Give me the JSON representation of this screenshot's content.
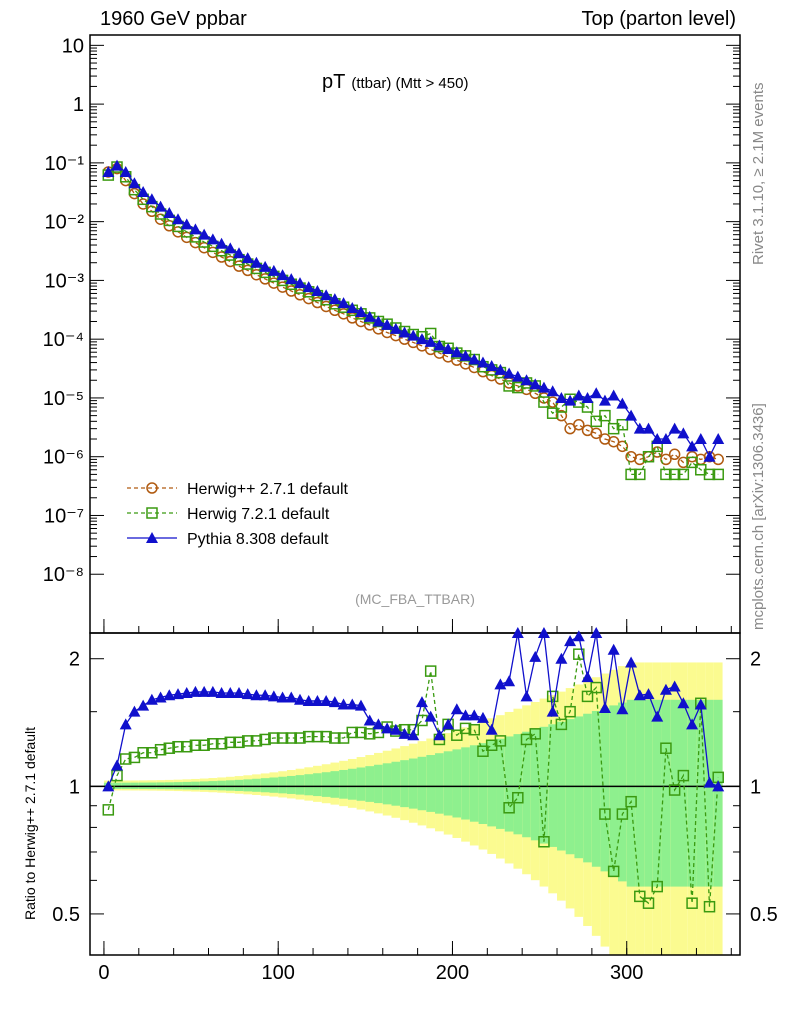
{
  "header": {
    "left": "1960 GeV ppbar",
    "right": "Top (parton level)"
  },
  "side_labels": {
    "rivet": "Rivet 3.1.10, ≥ 2.1M events",
    "mcplots": "mcplots.cern.ch [arXiv:1306.3436]"
  },
  "chart_data": {
    "type": "line",
    "title": "pT",
    "title_sub": "(ttbar) (Mtt > 450)",
    "watermark": "(MC_FBA_TTBAR)",
    "ratio_ylabel": "Ratio to Herwig++ 2.7.1 default",
    "xlim": [
      -8,
      365
    ],
    "ylim": [
      1e-09,
      15
    ],
    "yscale": "log",
    "ratio_ylim": [
      0.4,
      2.3
    ],
    "ratio_yscale": "log",
    "x_ticks": [
      "0",
      "100",
      "200",
      "300"
    ],
    "y_ticks": [
      "10⁻⁸",
      "10⁻⁷",
      "10⁻⁶",
      "10⁻⁵",
      "10⁻⁴",
      "10⁻³",
      "10⁻²",
      "10⁻¹",
      "1",
      "10"
    ],
    "ratio_ticks": [
      "0.5",
      "1",
      "2"
    ],
    "legend_position": "lower-left",
    "series": [
      {
        "name": "Herwig++ 2.7.1 default",
        "color": "#b05a10",
        "marker": "circle-open",
        "dash": true,
        "x": [
          2.5,
          7.5,
          12.5,
          17.5,
          22.5,
          27.5,
          32.5,
          37.5,
          42.5,
          47.5,
          52.5,
          57.5,
          62.5,
          67.5,
          72.5,
          77.5,
          82.5,
          87.5,
          92.5,
          97.5,
          102.5,
          107.5,
          112.5,
          117.5,
          122.5,
          127.5,
          132.5,
          137.5,
          142.5,
          147.5,
          152.5,
          157.5,
          162.5,
          167.5,
          172.5,
          177.5,
          182.5,
          187.5,
          192.5,
          197.5,
          202.5,
          207.5,
          212.5,
          217.5,
          222.5,
          227.5,
          232.5,
          237.5,
          242.5,
          247.5,
          252.5,
          257.5,
          262.5,
          267.5,
          272.5,
          277.5,
          282.5,
          287.5,
          292.5,
          297.5,
          302.5,
          307.5,
          312.5,
          317.5,
          322.5,
          327.5,
          332.5,
          337.5,
          342.5,
          347.5,
          352.5
        ],
        "values": [
          0.07,
          0.08,
          0.05,
          0.03,
          0.02,
          0.015,
          0.011,
          0.0085,
          0.0067,
          0.0054,
          0.0044,
          0.0036,
          0.003,
          0.0025,
          0.0021,
          0.00175,
          0.00148,
          0.00125,
          0.00106,
          0.0009,
          0.00077,
          0.00066,
          0.00057,
          0.00049,
          0.00042,
          0.00036,
          0.00031,
          0.00027,
          0.00023,
          0.0002,
          0.000175,
          0.00015,
          0.00013,
          0.000115,
          0.0001,
          8.8e-05,
          7.7e-05,
          6.7e-05,
          5.8e-05,
          5e-05,
          4.4e-05,
          3.8e-05,
          3.3e-05,
          2.8e-05,
          2.4e-05,
          2.1e-05,
          1.8e-05,
          1.6e-05,
          1.4e-05,
          1.2e-05,
          1e-05,
          8.5e-06,
          5e-06,
          3e-06,
          3.5e-06,
          2.8e-06,
          2.5e-06,
          2e-06,
          1.8e-06,
          1.5e-06,
          1e-06,
          9e-07,
          1e-06,
          1.2e-06,
          9e-07,
          1.1e-06,
          8e-07,
          1e-06,
          9e-07,
          1e-06,
          9e-07
        ]
      },
      {
        "name": "Herwig 7.2.1 default",
        "color": "#3a9a10",
        "marker": "square-open",
        "dash": true,
        "x": [
          2.5,
          7.5,
          12.5,
          17.5,
          22.5,
          27.5,
          32.5,
          37.5,
          42.5,
          47.5,
          52.5,
          57.5,
          62.5,
          67.5,
          72.5,
          77.5,
          82.5,
          87.5,
          92.5,
          97.5,
          102.5,
          107.5,
          112.5,
          117.5,
          122.5,
          127.5,
          132.5,
          137.5,
          142.5,
          147.5,
          152.5,
          157.5,
          162.5,
          167.5,
          172.5,
          177.5,
          182.5,
          187.5,
          192.5,
          197.5,
          202.5,
          207.5,
          212.5,
          217.5,
          222.5,
          227.5,
          232.5,
          237.5,
          242.5,
          247.5,
          252.5,
          257.5,
          262.5,
          267.5,
          272.5,
          277.5,
          282.5,
          287.5,
          292.5,
          297.5,
          302.5,
          307.5,
          312.5,
          317.5,
          322.5,
          327.5,
          332.5,
          337.5,
          342.5,
          347.5,
          352.5
        ],
        "values": [
          0.062,
          0.085,
          0.058,
          0.035,
          0.024,
          0.018,
          0.0135,
          0.0105,
          0.0083,
          0.0067,
          0.0055,
          0.0045,
          0.0038,
          0.0032,
          0.0027,
          0.00225,
          0.0019,
          0.0016,
          0.00137,
          0.00117,
          0.001,
          0.00086,
          0.00074,
          0.00064,
          0.00055,
          0.00047,
          0.0004,
          0.00035,
          0.00031,
          0.00027,
          0.00023,
          0.0002,
          0.00018,
          0.000155,
          0.000135,
          0.00012,
          0.00011,
          0.000125,
          7.5e-05,
          7e-05,
          5.8e-05,
          5.2e-05,
          4.5e-05,
          3.4e-05,
          3e-05,
          2.7e-05,
          1.6e-05,
          1.5e-05,
          1.8e-05,
          1.6e-05,
          8.5e-06,
          5.5e-06,
          7e-06,
          9.5e-06,
          8.5e-06,
          7e-06,
          4e-06,
          5e-06,
          3e-06,
          3.5e-06,
          5e-07,
          5e-07,
          1e-06,
          1.5e-06,
          5e-07,
          5e-07,
          5e-07,
          8e-07,
          6e-07,
          5e-07,
          5e-07
        ]
      },
      {
        "name": "Pythia 8.308 default",
        "color": "#1010cc",
        "marker": "triangle",
        "dash": false,
        "x": [
          2.5,
          7.5,
          12.5,
          17.5,
          22.5,
          27.5,
          32.5,
          37.5,
          42.5,
          47.5,
          52.5,
          57.5,
          62.5,
          67.5,
          72.5,
          77.5,
          82.5,
          87.5,
          92.5,
          97.5,
          102.5,
          107.5,
          112.5,
          117.5,
          122.5,
          127.5,
          132.5,
          137.5,
          142.5,
          147.5,
          152.5,
          157.5,
          162.5,
          167.5,
          172.5,
          177.5,
          182.5,
          187.5,
          192.5,
          197.5,
          202.5,
          207.5,
          212.5,
          217.5,
          222.5,
          227.5,
          232.5,
          237.5,
          242.5,
          247.5,
          252.5,
          257.5,
          262.5,
          267.5,
          272.5,
          277.5,
          282.5,
          287.5,
          292.5,
          297.5,
          302.5,
          307.5,
          312.5,
          317.5,
          322.5,
          327.5,
          332.5,
          337.5,
          342.5,
          347.5,
          352.5
        ],
        "values": [
          0.07,
          0.09,
          0.07,
          0.045,
          0.032,
          0.024,
          0.018,
          0.014,
          0.011,
          0.009,
          0.0074,
          0.006,
          0.005,
          0.0042,
          0.0035,
          0.0029,
          0.0024,
          0.002,
          0.0017,
          0.00145,
          0.00123,
          0.00105,
          0.0009,
          0.00077,
          0.00066,
          0.00056,
          0.00048,
          0.00041,
          0.00034,
          0.00029,
          0.00024,
          0.0002,
          0.000175,
          0.00015,
          0.00013,
          0.000115,
          0.0001,
          9e-05,
          7.8e-05,
          6.8e-05,
          6e-05,
          5.2e-05,
          4.5e-05,
          4e-05,
          3.5e-05,
          3e-05,
          2.6e-05,
          2.3e-05,
          2e-05,
          1.7e-05,
          1.5e-05,
          1.3e-05,
          1e-05,
          9e-06,
          1.1e-05,
          1e-05,
          1.2e-05,
          9e-06,
          1.1e-05,
          8e-06,
          5e-06,
          3e-06,
          3e-06,
          2e-06,
          2e-06,
          3e-06,
          2.5e-06,
          1.5e-06,
          2e-06,
          1e-06,
          2e-06
        ]
      }
    ],
    "ratio_series": [
      {
        "name": "Herwig 7.2.1 default",
        "values": [
          0.88,
          1.06,
          1.16,
          1.17,
          1.2,
          1.2,
          1.22,
          1.23,
          1.24,
          1.24,
          1.25,
          1.25,
          1.26,
          1.26,
          1.27,
          1.27,
          1.28,
          1.28,
          1.29,
          1.3,
          1.3,
          1.3,
          1.3,
          1.31,
          1.31,
          1.31,
          1.3,
          1.3,
          1.34,
          1.34,
          1.33,
          1.34,
          1.38,
          1.35,
          1.36,
          1.36,
          1.43,
          1.87,
          1.29,
          1.4,
          1.32,
          1.37,
          1.36,
          1.21,
          1.25,
          1.28,
          0.89,
          0.94,
          1.29,
          1.33,
          0.74,
          1.63,
          1.4,
          1.5,
          2.05,
          1.63,
          1.71,
          0.86,
          0.63,
          0.86,
          0.92,
          0.55,
          0.53,
          0.58,
          1.23,
          0.98,
          1.06,
          0.53,
          1.57,
          0.52,
          1.05
        ]
      },
      {
        "name": "Pythia 8.308 default",
        "values": [
          1.0,
          1.12,
          1.4,
          1.5,
          1.55,
          1.6,
          1.62,
          1.64,
          1.65,
          1.66,
          1.67,
          1.67,
          1.67,
          1.66,
          1.66,
          1.66,
          1.65,
          1.64,
          1.64,
          1.63,
          1.62,
          1.62,
          1.6,
          1.59,
          1.59,
          1.59,
          1.58,
          1.56,
          1.56,
          1.55,
          1.43,
          1.4,
          1.37,
          1.36,
          1.33,
          1.32,
          1.58,
          1.46,
          1.32,
          1.4,
          1.52,
          1.47,
          1.47,
          1.45,
          1.36,
          1.74,
          1.77,
          2.34,
          1.63,
          2.02,
          2.43,
          1.5,
          2.0,
          2.2,
          2.26,
          1.81,
          2.4,
          1.53,
          2.1,
          1.52,
          1.96,
          1.64,
          1.65,
          1.46,
          1.69,
          1.72,
          1.57,
          1.4,
          1.56,
          1.02,
          1.0
        ]
      }
    ]
  }
}
